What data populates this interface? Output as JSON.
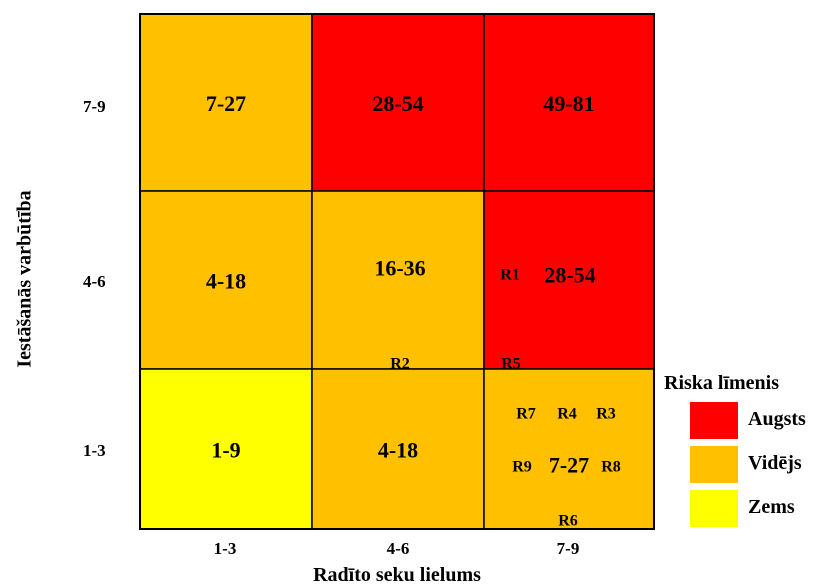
{
  "chart_data": {
    "type": "heatmap",
    "xlabel": "Radīto seku lielums",
    "ylabel": "Iestāšanās varbūtība",
    "x_categories": [
      "1-3",
      "4-6",
      "7-9"
    ],
    "y_categories": [
      "1-3",
      "4-6",
      "7-9"
    ],
    "cells": [
      {
        "x": "1-3",
        "y": "7-9",
        "value": "7-27",
        "level": "Vidējs",
        "risks": []
      },
      {
        "x": "4-6",
        "y": "7-9",
        "value": "28-54",
        "level": "Augsts",
        "risks": []
      },
      {
        "x": "7-9",
        "y": "7-9",
        "value": "49-81",
        "level": "Augsts",
        "risks": []
      },
      {
        "x": "1-3",
        "y": "4-6",
        "value": "4-18",
        "level": "Vidējs",
        "risks": []
      },
      {
        "x": "4-6",
        "y": "4-6",
        "value": "16-36",
        "level": "Vidējs",
        "risks": [
          "R2"
        ]
      },
      {
        "x": "7-9",
        "y": "4-6",
        "value": "28-54",
        "level": "Augsts",
        "risks": [
          "R1",
          "R5"
        ]
      },
      {
        "x": "1-3",
        "y": "1-3",
        "value": "1-9",
        "level": "Zems",
        "risks": []
      },
      {
        "x": "4-6",
        "y": "1-3",
        "value": "4-18",
        "level": "Vidējs",
        "risks": []
      },
      {
        "x": "7-9",
        "y": "1-3",
        "value": "7-27",
        "level": "Vidējs",
        "risks": [
          "R7",
          "R4",
          "R3",
          "R9",
          "R8",
          "R6"
        ]
      }
    ],
    "legend": {
      "title": "Riska līmenis",
      "placement": "right",
      "items": [
        {
          "label": "Augsts",
          "color": "#ff0000"
        },
        {
          "label": "Vidējs",
          "color": "#ffc000"
        },
        {
          "label": "Zems",
          "color": "#ffff00"
        }
      ]
    }
  }
}
